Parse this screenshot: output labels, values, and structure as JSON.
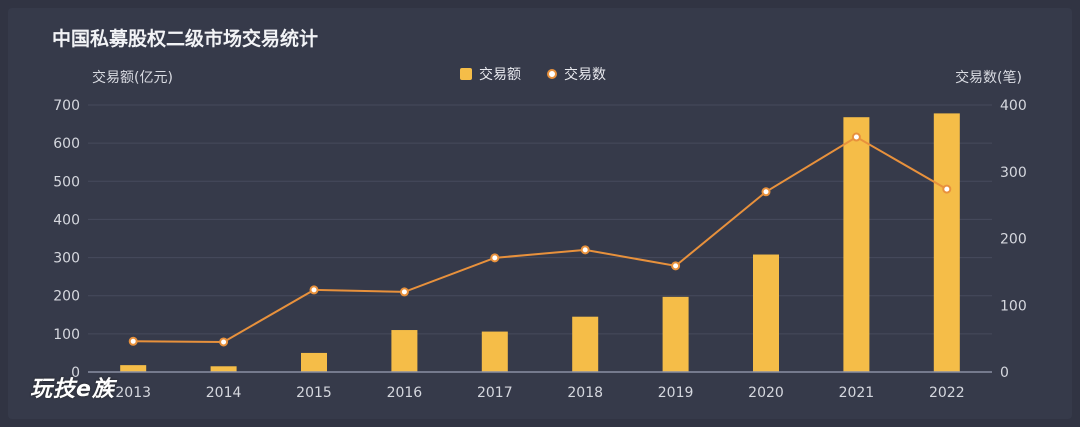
{
  "chart_data": {
    "type": "bar",
    "title": "中国私募股权二级市场交易统计",
    "ylabel": "交易额(亿元)",
    "y2label": "交易数(笔)",
    "categories": [
      "2013",
      "2014",
      "2015",
      "2016",
      "2017",
      "2018",
      "2019",
      "2020",
      "2021",
      "2022"
    ],
    "ylim": [
      0,
      700
    ],
    "yticks": [
      0,
      100,
      200,
      300,
      400,
      500,
      600,
      700
    ],
    "y2lim": [
      0,
      400
    ],
    "y2ticks": [
      0,
      100,
      200,
      300,
      400
    ],
    "grid": true,
    "legend_position": "top-center",
    "series": [
      {
        "name": "交易额",
        "type": "bar",
        "axis": "left",
        "color": "#f5bd48",
        "values": [
          18,
          15,
          50,
          110,
          106,
          145,
          197,
          308,
          668,
          678
        ]
      },
      {
        "name": "交易数",
        "type": "line",
        "axis": "right",
        "color": "#e8913c",
        "values": [
          46,
          45,
          123,
          120,
          171,
          183,
          159,
          270,
          352,
          274
        ]
      }
    ]
  },
  "watermark": "玩技e族"
}
